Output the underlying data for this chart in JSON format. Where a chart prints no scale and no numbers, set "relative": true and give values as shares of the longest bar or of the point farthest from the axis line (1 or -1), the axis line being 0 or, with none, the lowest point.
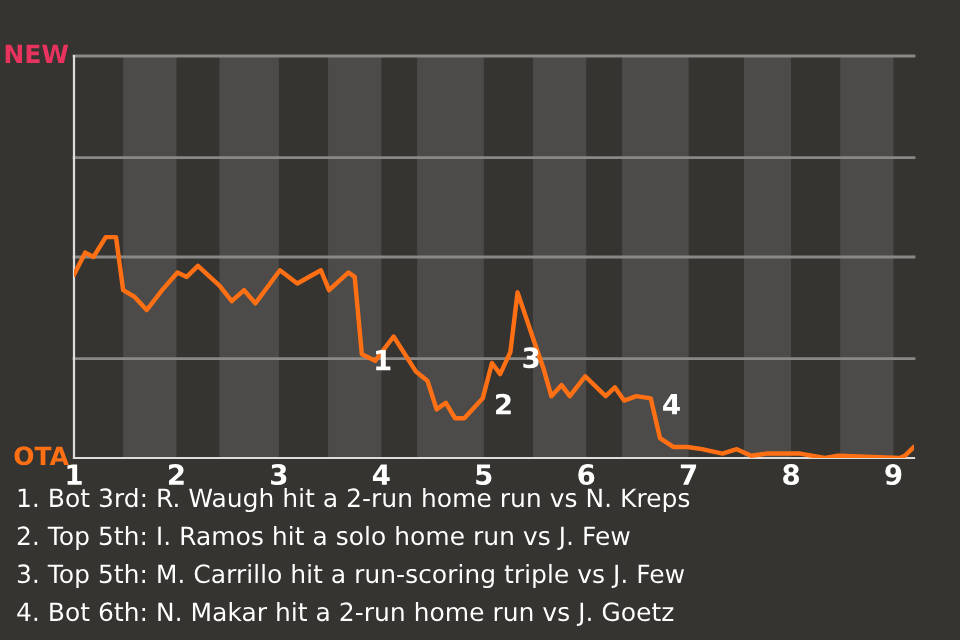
{
  "chart_data": {
    "type": "line",
    "relative": true,
    "x": [
      1.0,
      1.11,
      1.19,
      1.31,
      1.41,
      1.48,
      1.59,
      1.71,
      1.86,
      2.01,
      2.1,
      2.21,
      2.42,
      2.54,
      2.66,
      2.77,
      3.01,
      3.18,
      3.41,
      3.49,
      3.68,
      3.74,
      3.81,
      3.94,
      4.12,
      4.34,
      4.45,
      4.54,
      4.63,
      4.72,
      4.81,
      4.99,
      5.08,
      5.16,
      5.26,
      5.33,
      5.41,
      5.49,
      5.58,
      5.66,
      5.76,
      5.84,
      5.99,
      6.19,
      6.28,
      6.37,
      6.49,
      6.63,
      6.72,
      6.85,
      6.99,
      7.13,
      7.33,
      7.47,
      7.61,
      7.76,
      8.09,
      8.33,
      8.46,
      9.06,
      9.11,
      9.2
    ],
    "series": [
      {
        "color": "#ff7014",
        "values": [
          0.83,
          0.93,
          0.91,
          1,
          1,
          0.76,
          0.73,
          0.67,
          0.76,
          0.84,
          0.82,
          0.87,
          0.78,
          0.71,
          0.76,
          0.7,
          0.85,
          0.79,
          0.85,
          0.76,
          0.84,
          0.82,
          0.47,
          0.44,
          0.55,
          0.39,
          0.35,
          0.22,
          0.25,
          0.18,
          0.18,
          0.27,
          0.43,
          0.38,
          0.48,
          0.75,
          0.64,
          0.53,
          0.41,
          0.28,
          0.33,
          0.28,
          0.37,
          0.28,
          0.32,
          0.26,
          0.28,
          0.27,
          0.09,
          0.05,
          0.05,
          0.04,
          0.02,
          0.04,
          0.01,
          0.02,
          0.02,
          0,
          0.01,
          0,
          0.01,
          0.05
        ]
      }
    ],
    "xlim": [
      1,
      9.2
    ],
    "xticks": [
      1,
      2,
      3,
      4,
      5,
      6,
      7,
      8,
      9
    ],
    "ref_lines": [
      {
        "axis": "y",
        "value": 0.45,
        "color": "#8a8886"
      },
      {
        "axis": "y",
        "value": 0.91,
        "color": "#8a8886"
      },
      {
        "axis": "y",
        "value": 1.36,
        "color": "#8a8886"
      },
      {
        "axis": "y",
        "value": 1.82,
        "color": "#8a8886"
      }
    ],
    "bands": [
      {
        "axis": "x",
        "from": 1.48,
        "to": 2,
        "color": "#4d4b49"
      },
      {
        "axis": "x",
        "from": 2.42,
        "to": 3,
        "color": "#4d4b49"
      },
      {
        "axis": "x",
        "from": 3.48,
        "to": 4,
        "color": "#4d4b49"
      },
      {
        "axis": "x",
        "from": 4.35,
        "to": 5,
        "color": "#4d4b49"
      },
      {
        "axis": "x",
        "from": 5.48,
        "to": 6,
        "color": "#4d4b49"
      },
      {
        "axis": "x",
        "from": 6.35,
        "to": 7,
        "color": "#4d4b49"
      },
      {
        "axis": "x",
        "from": 7.54,
        "to": 8,
        "color": "#4d4b49"
      },
      {
        "axis": "x",
        "from": 8.48,
        "to": 9,
        "color": "#4d4b49"
      }
    ],
    "annotations": [
      "NEW",
      "OTA",
      {
        "text": "1",
        "x": 3.81,
        "y": 0.47
      },
      {
        "text": "2",
        "x": 4.99,
        "y": 0.27
      },
      {
        "text": "3",
        "x": 5.26,
        "y": 0.48
      },
      {
        "text": "4",
        "x": 6.63,
        "y": 0.27
      },
      "1. Bot 3rd: R. Waugh hit a 2-run home run vs N. Kreps",
      "2. Top 5th: I. Ramos hit a solo home run vs J. Few",
      "3. Top 5th: M. Carrillo hit a run-scoring triple vs J. Few",
      "4. Bot 6th: N. Makar hit a 2-run home run vs J. Goetz"
    ]
  }
}
